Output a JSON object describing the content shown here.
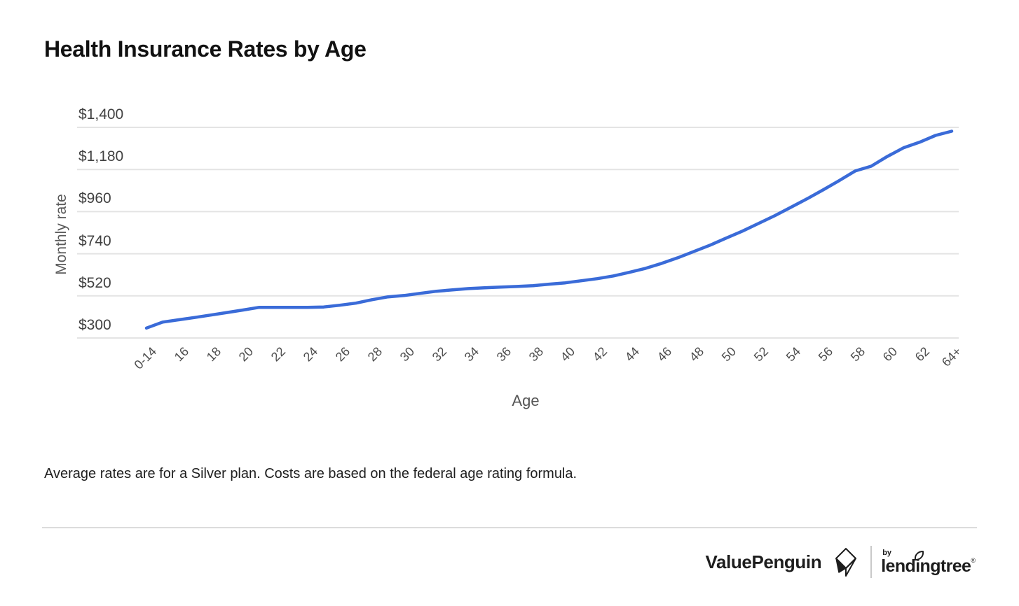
{
  "page": {
    "title": "Health Insurance Rates by Age",
    "footnote": "Average rates are for a Silver plan. Costs are based on the federal age rating formula."
  },
  "footer": {
    "valuepenguin_label": "ValuePenguin",
    "by_label": "by",
    "lendingtree_label": "lendingtree",
    "reg_mark": "®"
  },
  "chart_data": {
    "type": "line",
    "title": "Health Insurance Rates by Age",
    "xlabel": "Age",
    "ylabel": "Monthly rate",
    "grid": true,
    "legend": "none",
    "line_color": "#3a6bd8",
    "grid_color": "#e4e4e4",
    "ylim": [
      300,
      1400
    ],
    "y_ticks": [
      "$300",
      "$520",
      "$740",
      "$960",
      "$1,180",
      "$1,400"
    ],
    "y_tick_values": [
      300,
      520,
      740,
      960,
      1180,
      1400
    ],
    "x_tick_labels": [
      "0-14",
      "16",
      "18",
      "20",
      "22",
      "24",
      "26",
      "28",
      "30",
      "32",
      "34",
      "36",
      "38",
      "40",
      "42",
      "44",
      "46",
      "48",
      "50",
      "52",
      "54",
      "56",
      "58",
      "60",
      "62",
      "64+"
    ],
    "x": [
      "0-14",
      "15",
      "16",
      "17",
      "18",
      "19",
      "20",
      "21",
      "22",
      "23",
      "24",
      "25",
      "26",
      "27",
      "28",
      "29",
      "30",
      "31",
      "32",
      "33",
      "34",
      "35",
      "36",
      "37",
      "38",
      "39",
      "40",
      "41",
      "42",
      "43",
      "44",
      "45",
      "46",
      "47",
      "48",
      "49",
      "50",
      "51",
      "52",
      "53",
      "54",
      "55",
      "56",
      "57",
      "58",
      "59",
      "60",
      "61",
      "62",
      "63",
      "64+"
    ],
    "series": [
      {
        "name": "Monthly rate (Silver plan)",
        "values": [
          352,
          383,
          395,
          407,
          420,
          433,
          446,
          460,
          460,
          460,
          460,
          462,
          471,
          482,
          500,
          515,
          522,
          533,
          544,
          551,
          558,
          562,
          566,
          569,
          573,
          581,
          588,
          599,
          610,
          624,
          643,
          664,
          690,
          719,
          752,
          785,
          822,
          858,
          898,
          938,
          982,
          1026,
          1073,
          1121,
          1172,
          1197,
          1248,
          1293,
          1322,
          1358,
          1380
        ]
      }
    ]
  }
}
